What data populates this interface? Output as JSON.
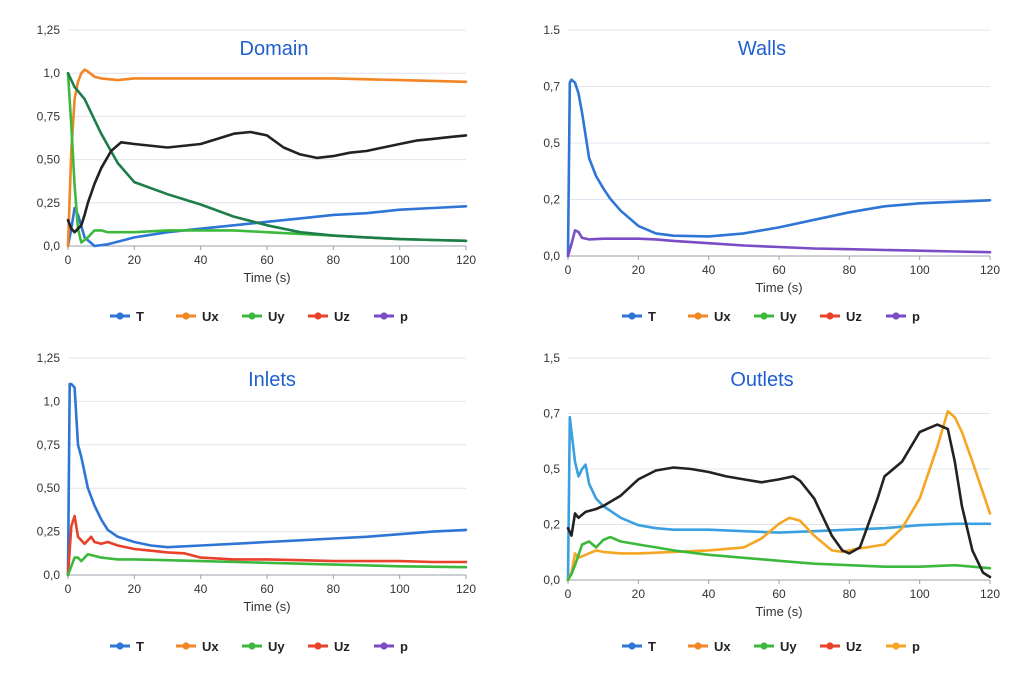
{
  "chart_data": [
    {
      "type": "line",
      "title": "Domain",
      "xlabel": "Time (s)",
      "ylabel": "",
      "xlim": [
        0,
        120
      ],
      "ylim": [
        0,
        1.25
      ],
      "xticks": [
        "0",
        "20",
        "40",
        "60",
        "80",
        "100",
        "120"
      ],
      "yticks": [
        "0,0",
        "0,25",
        "0,50",
        "0,75",
        "1,0",
        "1,25"
      ],
      "grid": true,
      "legend_position": "bottom",
      "legend": [
        {
          "name": "T",
          "color": "#2e75d6"
        },
        {
          "name": "Ux",
          "color": "#f28524"
        },
        {
          "name": "Uy",
          "color": "#3cb93c"
        },
        {
          "name": "Uz",
          "color": "#e8412c"
        },
        {
          "name": "p",
          "color": "#7a4cc6"
        }
      ],
      "series": [
        {
          "color": "#2e75d6",
          "x": [
            0,
            1,
            2,
            3,
            5,
            8,
            12,
            20,
            30,
            40,
            50,
            60,
            70,
            80,
            90,
            100,
            110,
            120
          ],
          "y": [
            0,
            0.1,
            0.22,
            0.18,
            0.05,
            0.0,
            0.01,
            0.05,
            0.08,
            0.1,
            0.12,
            0.14,
            0.16,
            0.18,
            0.19,
            0.21,
            0.22,
            0.23
          ]
        },
        {
          "color": "#f28524",
          "x": [
            0,
            1,
            2,
            3,
            4,
            5,
            6,
            8,
            10,
            15,
            20,
            30,
            40,
            60,
            80,
            100,
            120
          ],
          "y": [
            0,
            0.55,
            0.85,
            0.95,
            1.0,
            1.02,
            1.01,
            0.98,
            0.97,
            0.96,
            0.97,
            0.97,
            0.97,
            0.97,
            0.97,
            0.96,
            0.95
          ]
        },
        {
          "color": "#3cb93c",
          "x": [
            0,
            1,
            2,
            3,
            4,
            6,
            8,
            10,
            12,
            16,
            20,
            30,
            40,
            50,
            60,
            70,
            80,
            90,
            100,
            110,
            120
          ],
          "y": [
            1.0,
            0.7,
            0.35,
            0.1,
            0.02,
            0.05,
            0.09,
            0.09,
            0.08,
            0.08,
            0.08,
            0.09,
            0.09,
            0.09,
            0.08,
            0.07,
            0.06,
            0.05,
            0.04,
            0.035,
            0.03
          ]
        },
        {
          "color": "#1e7e4a",
          "x": [
            0,
            2,
            5,
            10,
            15,
            20,
            30,
            40,
            50,
            60,
            70,
            80,
            90,
            100,
            110,
            120
          ],
          "y": [
            1.0,
            0.92,
            0.85,
            0.65,
            0.48,
            0.37,
            0.3,
            0.24,
            0.17,
            0.12,
            0.08,
            0.06,
            0.05,
            0.04,
            0.035,
            0.03
          ]
        },
        {
          "color": "#222222",
          "x": [
            0,
            1,
            2,
            4,
            5,
            6,
            8,
            10,
            13,
            16,
            20,
            30,
            40,
            45,
            50,
            55,
            60,
            65,
            70,
            75,
            80,
            85,
            90,
            95,
            100,
            105,
            110,
            115,
            120
          ],
          "y": [
            0.15,
            0.1,
            0.08,
            0.12,
            0.18,
            0.25,
            0.36,
            0.45,
            0.55,
            0.6,
            0.59,
            0.57,
            0.59,
            0.62,
            0.65,
            0.66,
            0.64,
            0.57,
            0.53,
            0.51,
            0.52,
            0.54,
            0.55,
            0.57,
            0.59,
            0.61,
            0.62,
            0.63,
            0.64
          ]
        }
      ]
    },
    {
      "type": "line",
      "title": "Walls",
      "xlabel": "Time (s)",
      "ylabel": "",
      "xlim": [
        0,
        120
      ],
      "ylim": [
        0,
        1.5
      ],
      "xticks": [
        "0",
        "20",
        "40",
        "60",
        "80",
        "100",
        "120"
      ],
      "yticks": [
        "0,0",
        "0,2",
        "0,5",
        "0,7",
        "1.5"
      ],
      "grid": true,
      "legend_position": "bottom",
      "legend": [
        {
          "name": "T",
          "color": "#2e75d6"
        },
        {
          "name": "Ux",
          "color": "#f28524"
        },
        {
          "name": "Uy",
          "color": "#3cb93c"
        },
        {
          "name": "Uz",
          "color": "#e8412c"
        },
        {
          "name": "p",
          "color": "#7a4cc6"
        }
      ],
      "series": [
        {
          "color": "#2e75d6",
          "x": [
            0,
            0.5,
            1,
            2,
            3,
            4,
            5,
            6,
            8,
            10,
            12,
            15,
            20,
            25,
            30,
            40,
            50,
            60,
            70,
            80,
            90,
            100,
            110,
            120
          ],
          "y": [
            0,
            1.15,
            1.17,
            1.15,
            1.08,
            0.95,
            0.8,
            0.65,
            0.53,
            0.45,
            0.38,
            0.3,
            0.2,
            0.15,
            0.135,
            0.13,
            0.15,
            0.19,
            0.24,
            0.29,
            0.33,
            0.35,
            0.36,
            0.37
          ]
        },
        {
          "color": "#7a4cc6",
          "x": [
            0,
            1,
            2,
            3,
            4,
            6,
            10,
            20,
            25,
            30,
            40,
            50,
            60,
            70,
            80,
            90,
            100,
            110,
            120
          ],
          "y": [
            0,
            0.08,
            0.17,
            0.16,
            0.12,
            0.11,
            0.115,
            0.115,
            0.11,
            0.1,
            0.085,
            0.07,
            0.06,
            0.05,
            0.045,
            0.04,
            0.035,
            0.03,
            0.025
          ]
        }
      ]
    },
    {
      "type": "line",
      "title": "Inlets",
      "xlabel": "Time (s)",
      "ylabel": "",
      "xlim": [
        0,
        120
      ],
      "ylim": [
        0,
        1.25
      ],
      "xticks": [
        "0",
        "20",
        "40",
        "60",
        "80",
        "100",
        "120"
      ],
      "yticks": [
        "0,0",
        "0,25",
        "0,50",
        "0,75",
        "1,0",
        "1,25"
      ],
      "grid": true,
      "legend_position": "bottom",
      "legend": [
        {
          "name": "T",
          "color": "#2e75d6"
        },
        {
          "name": "Ux",
          "color": "#f28524"
        },
        {
          "name": "Uy",
          "color": "#3cb93c"
        },
        {
          "name": "Uz",
          "color": "#e8412c"
        },
        {
          "name": "p",
          "color": "#7a4cc6"
        }
      ],
      "series": [
        {
          "color": "#2e75d6",
          "x": [
            0,
            0.5,
            1,
            2,
            3,
            4,
            6,
            8,
            10,
            12,
            15,
            20,
            25,
            30,
            40,
            50,
            60,
            70,
            80,
            90,
            100,
            110,
            120
          ],
          "y": [
            0,
            1.1,
            1.1,
            1.08,
            0.75,
            0.68,
            0.5,
            0.4,
            0.32,
            0.26,
            0.22,
            0.19,
            0.17,
            0.16,
            0.17,
            0.18,
            0.19,
            0.2,
            0.21,
            0.22,
            0.235,
            0.25,
            0.26
          ]
        },
        {
          "color": "#e8412c",
          "x": [
            0,
            1,
            2,
            3,
            4,
            5,
            6,
            7,
            8,
            10,
            12,
            15,
            20,
            25,
            30,
            35,
            40,
            50,
            60,
            70,
            80,
            90,
            100,
            110,
            120
          ],
          "y": [
            0,
            0.28,
            0.34,
            0.22,
            0.2,
            0.18,
            0.2,
            0.22,
            0.19,
            0.18,
            0.19,
            0.17,
            0.15,
            0.14,
            0.13,
            0.125,
            0.1,
            0.09,
            0.09,
            0.085,
            0.08,
            0.08,
            0.08,
            0.075,
            0.075
          ]
        },
        {
          "color": "#3cb93c",
          "x": [
            0,
            1,
            2,
            3,
            4,
            5,
            6,
            8,
            10,
            15,
            20,
            30,
            40,
            60,
            80,
            100,
            120
          ],
          "y": [
            0,
            0.05,
            0.1,
            0.1,
            0.08,
            0.1,
            0.12,
            0.11,
            0.1,
            0.09,
            0.09,
            0.085,
            0.08,
            0.07,
            0.06,
            0.05,
            0.045
          ]
        }
      ]
    },
    {
      "type": "line",
      "title": "Outlets",
      "xlabel": "Time (s)",
      "ylabel": "",
      "xlim": [
        0,
        120
      ],
      "ylim": [
        0,
        1.5
      ],
      "xticks": [
        "0",
        "20",
        "40",
        "60",
        "80",
        "100",
        "120"
      ],
      "yticks": [
        "0,0",
        "0,2",
        "0,5",
        "0,7",
        "1,5"
      ],
      "grid": true,
      "legend_position": "bottom",
      "legend": [
        {
          "name": "T",
          "color": "#2e75d6"
        },
        {
          "name": "Ux",
          "color": "#f28524"
        },
        {
          "name": "Uy",
          "color": "#3cb93c"
        },
        {
          "name": "Uz",
          "color": "#e8412c"
        },
        {
          "name": "p",
          "color": "#f5a623"
        }
      ],
      "series": [
        {
          "color": "#3aa0e0",
          "x": [
            0,
            0.5,
            1,
            2,
            3,
            4,
            5,
            6,
            8,
            10,
            15,
            20,
            25,
            30,
            40,
            50,
            60,
            70,
            80,
            90,
            100,
            110,
            120
          ],
          "y": [
            0,
            1.1,
            1.0,
            0.8,
            0.7,
            0.75,
            0.78,
            0.65,
            0.55,
            0.5,
            0.42,
            0.37,
            0.35,
            0.34,
            0.34,
            0.33,
            0.32,
            0.33,
            0.34,
            0.35,
            0.37,
            0.38,
            0.38
          ]
        },
        {
          "color": "#f5a623",
          "x": [
            0,
            1,
            2,
            3,
            5,
            8,
            10,
            15,
            20,
            30,
            40,
            50,
            55,
            60,
            63,
            66,
            70,
            75,
            78,
            82,
            85,
            90,
            95,
            100,
            105,
            108,
            110,
            112,
            115,
            120
          ],
          "y": [
            0,
            0.05,
            0.18,
            0.15,
            0.17,
            0.2,
            0.19,
            0.18,
            0.18,
            0.19,
            0.2,
            0.22,
            0.28,
            0.38,
            0.42,
            0.4,
            0.3,
            0.2,
            0.19,
            0.21,
            0.22,
            0.24,
            0.35,
            0.55,
            0.9,
            1.14,
            1.1,
            1.0,
            0.8,
            0.45
          ]
        },
        {
          "color": "#3cb93c",
          "x": [
            0,
            1,
            2,
            4,
            6,
            8,
            10,
            12,
            15,
            20,
            25,
            30,
            40,
            50,
            60,
            70,
            80,
            90,
            100,
            110,
            120
          ],
          "y": [
            0,
            0.04,
            0.1,
            0.24,
            0.26,
            0.22,
            0.27,
            0.29,
            0.26,
            0.24,
            0.22,
            0.2,
            0.17,
            0.15,
            0.13,
            0.11,
            0.1,
            0.09,
            0.09,
            0.1,
            0.08
          ]
        },
        {
          "color": "#222222",
          "x": [
            0,
            1,
            2,
            3,
            5,
            8,
            10,
            15,
            20,
            25,
            30,
            35,
            40,
            45,
            50,
            55,
            60,
            64,
            66,
            70,
            75,
            78,
            80,
            83,
            85,
            88,
            90,
            95,
            100,
            105,
            108,
            110,
            112,
            115,
            118,
            120
          ],
          "y": [
            0.35,
            0.3,
            0.45,
            0.42,
            0.46,
            0.48,
            0.5,
            0.57,
            0.68,
            0.74,
            0.76,
            0.75,
            0.73,
            0.7,
            0.68,
            0.66,
            0.68,
            0.7,
            0.67,
            0.55,
            0.3,
            0.2,
            0.18,
            0.22,
            0.35,
            0.55,
            0.7,
            0.8,
            1.0,
            1.05,
            1.02,
            0.8,
            0.5,
            0.2,
            0.05,
            0.02
          ]
        }
      ]
    }
  ]
}
